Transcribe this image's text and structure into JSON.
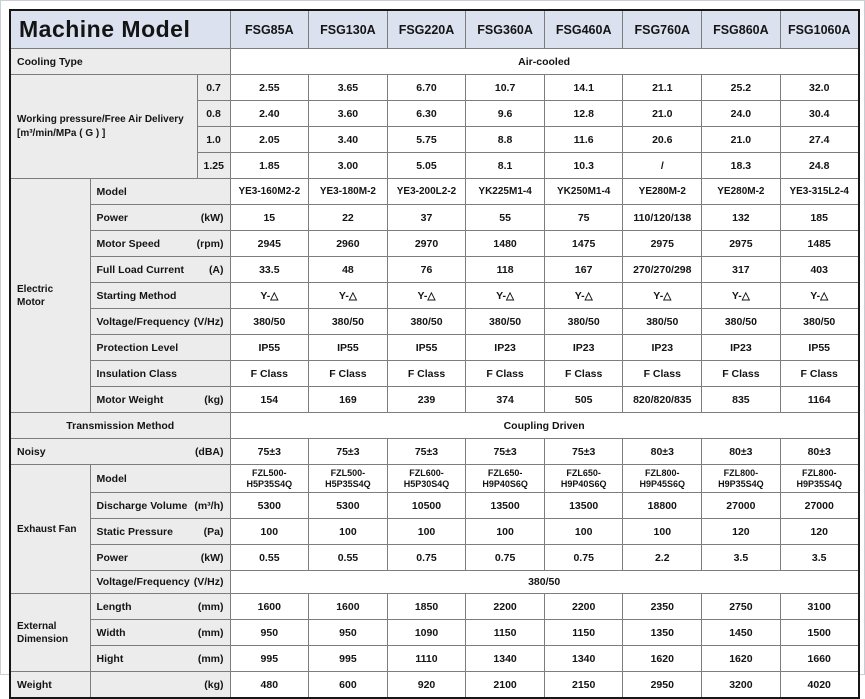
{
  "header": {
    "title": "Machine Model",
    "models": [
      "FSG85A",
      "FSG130A",
      "FSG220A",
      "FSG360A",
      "FSG460A",
      "FSG760A",
      "FSG860A",
      "FSG1060A"
    ]
  },
  "cooling": {
    "label": "Cooling Type",
    "value": "Air-cooled"
  },
  "pressure": {
    "label_line1": "Working pressure/Free Air Delivery",
    "label_line2": "[m³/min/MPa ( G ) ]",
    "rows": [
      {
        "pressure": "0.7",
        "values": [
          "2.55",
          "3.65",
          "6.70",
          "10.7",
          "14.1",
          "21.1",
          "25.2",
          "32.0"
        ]
      },
      {
        "pressure": "0.8",
        "values": [
          "2.40",
          "3.60",
          "6.30",
          "9.6",
          "12.8",
          "21.0",
          "24.0",
          "30.4"
        ]
      },
      {
        "pressure": "1.0",
        "values": [
          "2.05",
          "3.40",
          "5.75",
          "8.8",
          "11.6",
          "20.6",
          "21.0",
          "27.4"
        ]
      },
      {
        "pressure": "1.25",
        "values": [
          "1.85",
          "3.00",
          "5.05",
          "8.1",
          "10.3",
          "/",
          "18.3",
          "24.8"
        ]
      }
    ]
  },
  "electric_motor": {
    "group_label": "Electric Motor",
    "rows": [
      {
        "label": "Model",
        "unit": "",
        "values": [
          "YE3-160M2-2",
          "YE3-180M-2",
          "YE3-200L2-2",
          "YK225M1-4",
          "YK250M1-4",
          "YE280M-2",
          "YE280M-2",
          "YE3-315L2-4"
        ]
      },
      {
        "label": "Power",
        "unit": "(kW)",
        "values": [
          "15",
          "22",
          "37",
          "55",
          "75",
          "110/120/138",
          "132",
          "185"
        ]
      },
      {
        "label": "Motor Speed",
        "unit": "(rpm)",
        "values": [
          "2945",
          "2960",
          "2970",
          "1480",
          "1475",
          "2975",
          "2975",
          "1485"
        ]
      },
      {
        "label": "Full Load Current",
        "unit": "(A)",
        "values": [
          "33.5",
          "48",
          "76",
          "118",
          "167",
          "270/270/298",
          "317",
          "403"
        ]
      },
      {
        "label": "Starting Method",
        "unit": "",
        "values": [
          "Y-△",
          "Y-△",
          "Y-△",
          "Y-△",
          "Y-△",
          "Y-△",
          "Y-△",
          "Y-△"
        ]
      },
      {
        "label": "Voltage/Frequency",
        "unit": "(V/Hz)",
        "values": [
          "380/50",
          "380/50",
          "380/50",
          "380/50",
          "380/50",
          "380/50",
          "380/50",
          "380/50"
        ]
      },
      {
        "label": "Protection Level",
        "unit": "",
        "values": [
          "IP55",
          "IP55",
          "IP55",
          "IP23",
          "IP23",
          "IP23",
          "IP23",
          "IP55"
        ]
      },
      {
        "label": "Insulation Class",
        "unit": "",
        "values": [
          "F Class",
          "F Class",
          "F Class",
          "F Class",
          "F Class",
          "F Class",
          "F Class",
          "F Class"
        ]
      },
      {
        "label": "Motor Weight",
        "unit": "(kg)",
        "values": [
          "154",
          "169",
          "239",
          "374",
          "505",
          "820/820/835",
          "835",
          "1164"
        ]
      }
    ]
  },
  "transmission": {
    "label": "Transmission Method",
    "value": "Coupling Driven"
  },
  "noisy": {
    "label": "Noisy",
    "unit": "(dBA)",
    "values": [
      "75±3",
      "75±3",
      "75±3",
      "75±3",
      "75±3",
      "80±3",
      "80±3",
      "80±3"
    ]
  },
  "exhaust_fan": {
    "group_label": "Exhaust Fan",
    "rows": [
      {
        "label": "Model",
        "unit": "",
        "values": [
          "FZL500-H5P35S4Q",
          "FZL500-H5P35S4Q",
          "FZL600-H5P30S4Q",
          "FZL650-H9P40S6Q",
          "FZL650-H9P40S6Q",
          "FZL800-H9P45S6Q",
          "FZL800-H9P35S4Q",
          "FZL800-H9P35S4Q"
        ]
      },
      {
        "label": "Discharge Volume",
        "unit": "(m³/h)",
        "values": [
          "5300",
          "5300",
          "10500",
          "13500",
          "13500",
          "18800",
          "27000",
          "27000"
        ]
      },
      {
        "label": "Static Pressure",
        "unit": "(Pa)",
        "values": [
          "100",
          "100",
          "100",
          "100",
          "100",
          "100",
          "120",
          "120"
        ]
      },
      {
        "label": "Power",
        "unit": "(kW)",
        "values": [
          "0.55",
          "0.55",
          "0.75",
          "0.75",
          "0.75",
          "2.2",
          "3.5",
          "3.5"
        ]
      }
    ],
    "voltage_row": {
      "label": "Voltage/Frequency",
      "unit": "(V/Hz)",
      "value": "380/50"
    }
  },
  "external_dimension": {
    "group_label": "External Dimension",
    "rows": [
      {
        "label": "Length",
        "unit": "(mm)",
        "values": [
          "1600",
          "1600",
          "1850",
          "2200",
          "2200",
          "2350",
          "2750",
          "3100"
        ]
      },
      {
        "label": "Width",
        "unit": "(mm)",
        "values": [
          "950",
          "950",
          "1090",
          "1150",
          "1150",
          "1350",
          "1450",
          "1500"
        ]
      },
      {
        "label": "Hight",
        "unit": "(mm)",
        "values": [
          "995",
          "995",
          "1110",
          "1340",
          "1340",
          "1620",
          "1620",
          "1660"
        ]
      }
    ]
  },
  "weight": {
    "label": "Weight",
    "unit": "(kg)",
    "values": [
      "480",
      "600",
      "920",
      "2100",
      "2150",
      "2950",
      "3200",
      "4020"
    ]
  }
}
